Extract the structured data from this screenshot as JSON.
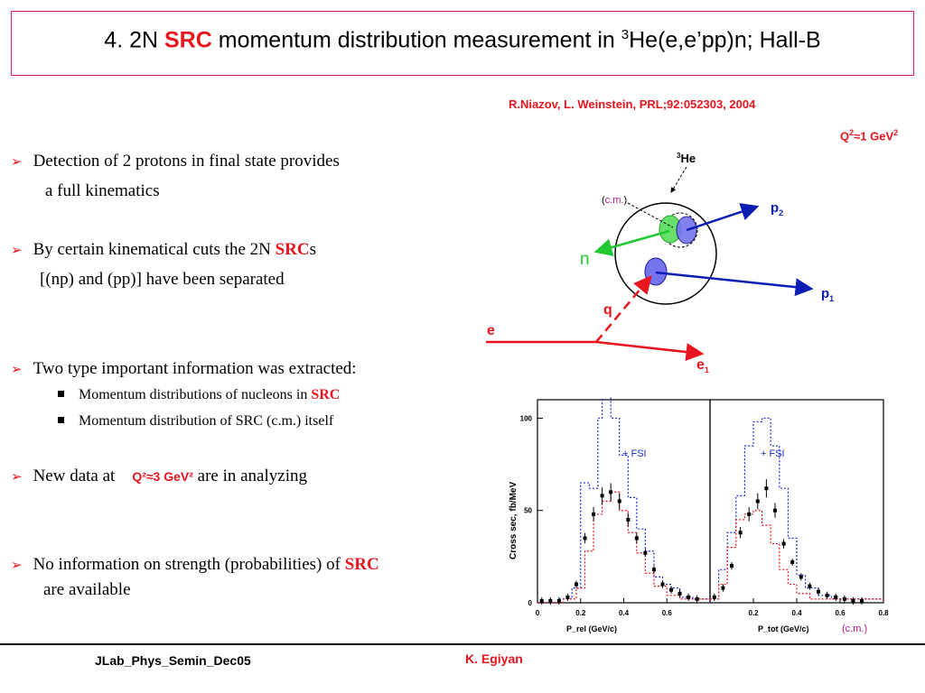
{
  "title": {
    "prefix": "4. 2N ",
    "highlight": "SRC",
    "middle": " momentum distribution measurement in ",
    "superscript": "3",
    "suffix": "He(e,e’pp)n; Hall-B"
  },
  "reference": "R.Niazov, L. Weinstein, PRL;92:052303, 2004",
  "q2_label": {
    "q": "Q",
    "sup": "2",
    "rest": "≈1 GeV",
    "sup2": "2"
  },
  "bullets": [
    {
      "line1": "Detection of 2 protons in final state provides",
      "line2": "a full kinematics"
    },
    {
      "line1": "By certain kinematical cuts the 2N ",
      "highlight": "SRC",
      "suffix": "s",
      "line2": "[(np) and (pp)] have been separated"
    },
    {
      "line1": "Two type important information was extracted:"
    },
    {
      "line1": "New data at ",
      "q2": "Q²≈3 GeV²",
      "suffix": " are in analyzing"
    },
    {
      "line1": "No information on strength (probabilities) of ",
      "highlight": "SRC",
      "line2": "are available"
    }
  ],
  "sub_bullets": [
    {
      "text": "Momentum distributions of nucleons in ",
      "highlight": "SRC"
    },
    {
      "text": "Momentum distribution of SRC (c.m.) itself"
    }
  ],
  "diagram": {
    "he_label": "He",
    "he_sup": "3",
    "cm_label": "c.m.",
    "p2": "p",
    "p2_sub": "2",
    "p1": "p",
    "p1_sub": "1",
    "n": "n",
    "q": "q",
    "e": "e",
    "e1": "e",
    "e1_sub": "1",
    "colors": {
      "proton": "#0a1eb4",
      "neutron": "#22c832",
      "electron": "#e8141e",
      "pair_green": "#66e06a",
      "pair_blue": "#7474ee"
    }
  },
  "chart_data": {
    "type": "scatter",
    "ylabel": "Cross sec, fb/MeV",
    "ylim": [
      0,
      110
    ],
    "yticks": [
      "0",
      "50",
      "100"
    ],
    "legend": "+ FSI",
    "panels": [
      {
        "name": "left",
        "xlabel": "P_rel  (GeV/c)",
        "xlim": [
          0,
          0.8
        ],
        "xticks": [
          "0",
          "0.2",
          "0.4",
          "0.6"
        ],
        "points": [
          [
            0.02,
            1
          ],
          [
            0.06,
            1
          ],
          [
            0.1,
            1
          ],
          [
            0.14,
            3
          ],
          [
            0.18,
            10
          ],
          [
            0.22,
            35
          ],
          [
            0.26,
            48
          ],
          [
            0.3,
            58
          ],
          [
            0.34,
            60
          ],
          [
            0.38,
            55
          ],
          [
            0.42,
            45
          ],
          [
            0.46,
            35
          ],
          [
            0.5,
            27
          ],
          [
            0.54,
            18
          ],
          [
            0.58,
            10
          ],
          [
            0.62,
            7
          ],
          [
            0.66,
            5
          ],
          [
            0.7,
            3
          ],
          [
            0.74,
            2
          ]
        ],
        "fsi_curve": [
          [
            0,
            0
          ],
          [
            0.1,
            2
          ],
          [
            0.16,
            8
          ],
          [
            0.2,
            65
          ],
          [
            0.24,
            62
          ],
          [
            0.28,
            100
          ],
          [
            0.3,
            112
          ],
          [
            0.34,
            100
          ],
          [
            0.38,
            80
          ],
          [
            0.42,
            57
          ],
          [
            0.46,
            40
          ],
          [
            0.5,
            28
          ],
          [
            0.54,
            14
          ],
          [
            0.58,
            10
          ],
          [
            0.62,
            8
          ],
          [
            0.66,
            3
          ],
          [
            0.72,
            2
          ],
          [
            0.8,
            0
          ]
        ],
        "pwia_curve": [
          [
            0,
            0
          ],
          [
            0.12,
            2
          ],
          [
            0.18,
            8
          ],
          [
            0.22,
            28
          ],
          [
            0.26,
            48
          ],
          [
            0.3,
            55
          ],
          [
            0.34,
            60
          ],
          [
            0.38,
            50
          ],
          [
            0.42,
            38
          ],
          [
            0.46,
            27
          ],
          [
            0.5,
            16
          ],
          [
            0.54,
            9
          ],
          [
            0.6,
            4
          ],
          [
            0.66,
            2
          ],
          [
            0.8,
            0
          ]
        ]
      },
      {
        "name": "right",
        "xlabel": "P_tot  (GeV/c)",
        "xlabel_extra": "(c.m.)",
        "xlim": [
          0,
          0.8
        ],
        "xticks": [
          "0.2",
          "0.4",
          "0.6",
          "0.8"
        ],
        "points": [
          [
            0.02,
            3
          ],
          [
            0.06,
            8
          ],
          [
            0.1,
            20
          ],
          [
            0.14,
            38
          ],
          [
            0.18,
            48
          ],
          [
            0.22,
            55
          ],
          [
            0.26,
            62
          ],
          [
            0.3,
            50
          ],
          [
            0.34,
            32
          ],
          [
            0.38,
            22
          ],
          [
            0.42,
            14
          ],
          [
            0.46,
            9
          ],
          [
            0.5,
            6
          ],
          [
            0.54,
            4
          ],
          [
            0.58,
            3
          ],
          [
            0.62,
            2
          ],
          [
            0.66,
            1
          ],
          [
            0.7,
            1
          ]
        ],
        "fsi_curve": [
          [
            0,
            2
          ],
          [
            0.04,
            18
          ],
          [
            0.08,
            38
          ],
          [
            0.12,
            58
          ],
          [
            0.16,
            85
          ],
          [
            0.2,
            98
          ],
          [
            0.24,
            100
          ],
          [
            0.28,
            85
          ],
          [
            0.32,
            62
          ],
          [
            0.36,
            35
          ],
          [
            0.4,
            15
          ],
          [
            0.44,
            8
          ],
          [
            0.5,
            4
          ],
          [
            0.56,
            2
          ],
          [
            0.8,
            0
          ]
        ],
        "pwia_curve": [
          [
            0,
            2
          ],
          [
            0.04,
            10
          ],
          [
            0.08,
            30
          ],
          [
            0.12,
            45
          ],
          [
            0.16,
            48
          ],
          [
            0.2,
            50
          ],
          [
            0.24,
            42
          ],
          [
            0.28,
            32
          ],
          [
            0.32,
            18
          ],
          [
            0.36,
            10
          ],
          [
            0.4,
            5
          ],
          [
            0.46,
            2
          ],
          [
            0.8,
            0
          ]
        ]
      }
    ]
  },
  "footer": {
    "left": "JLab_Phys_Semin_Dec05",
    "center": "K. Egiyan"
  }
}
